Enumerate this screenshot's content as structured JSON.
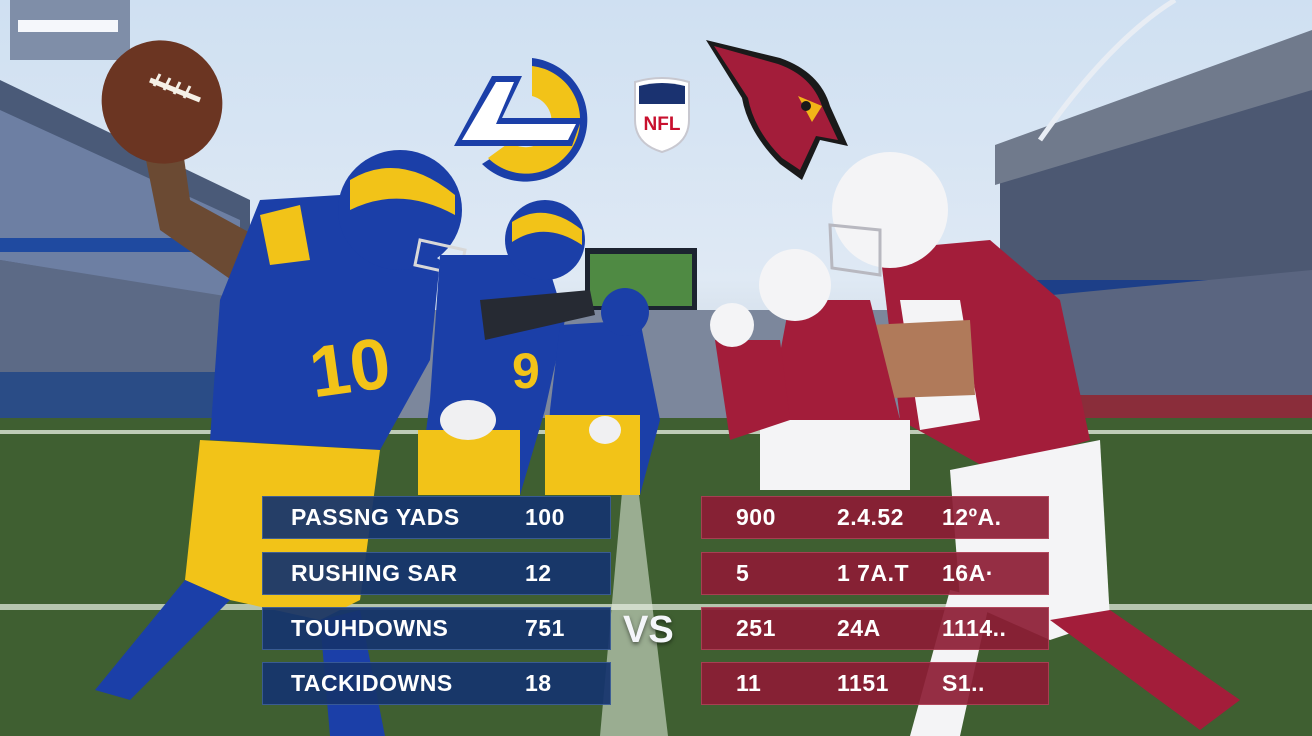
{
  "matchup": {
    "home_team": "LA",
    "league_shield_text": "NFL",
    "vs_text": "VS",
    "home_jersey_number": "10",
    "teammate_jersey_number": "9"
  },
  "rams_stats": [
    {
      "label": "PASSNG YADS",
      "value": "100"
    },
    {
      "label": "RUSHING SAR",
      "value": "12"
    },
    {
      "label": "TOUHDOWNS",
      "value": "751"
    },
    {
      "label": "TACKIDOWNS",
      "value": "18"
    }
  ],
  "cardinals_stats": [
    {
      "v1": "900",
      "v2": "2.4.52",
      "v3": "12ºA."
    },
    {
      "v1": "5",
      "v2": "1  7A.T",
      "v3": "16A·"
    },
    {
      "v1": "251",
      "v2": "24A",
      "v3": "1114.."
    },
    {
      "v1": "11",
      "v2": "1151",
      "v3": "S1.."
    }
  ],
  "colors": {
    "rams_blue": "#1b3fa8",
    "rams_gold": "#f2c318",
    "cardinals_red": "#a31d3a",
    "field_green": "#3f5c2f",
    "sky": "#cfe0f2"
  },
  "icons": [
    "rams-logo-icon",
    "nfl-shield-icon",
    "cardinals-logo-icon",
    "football-icon"
  ]
}
